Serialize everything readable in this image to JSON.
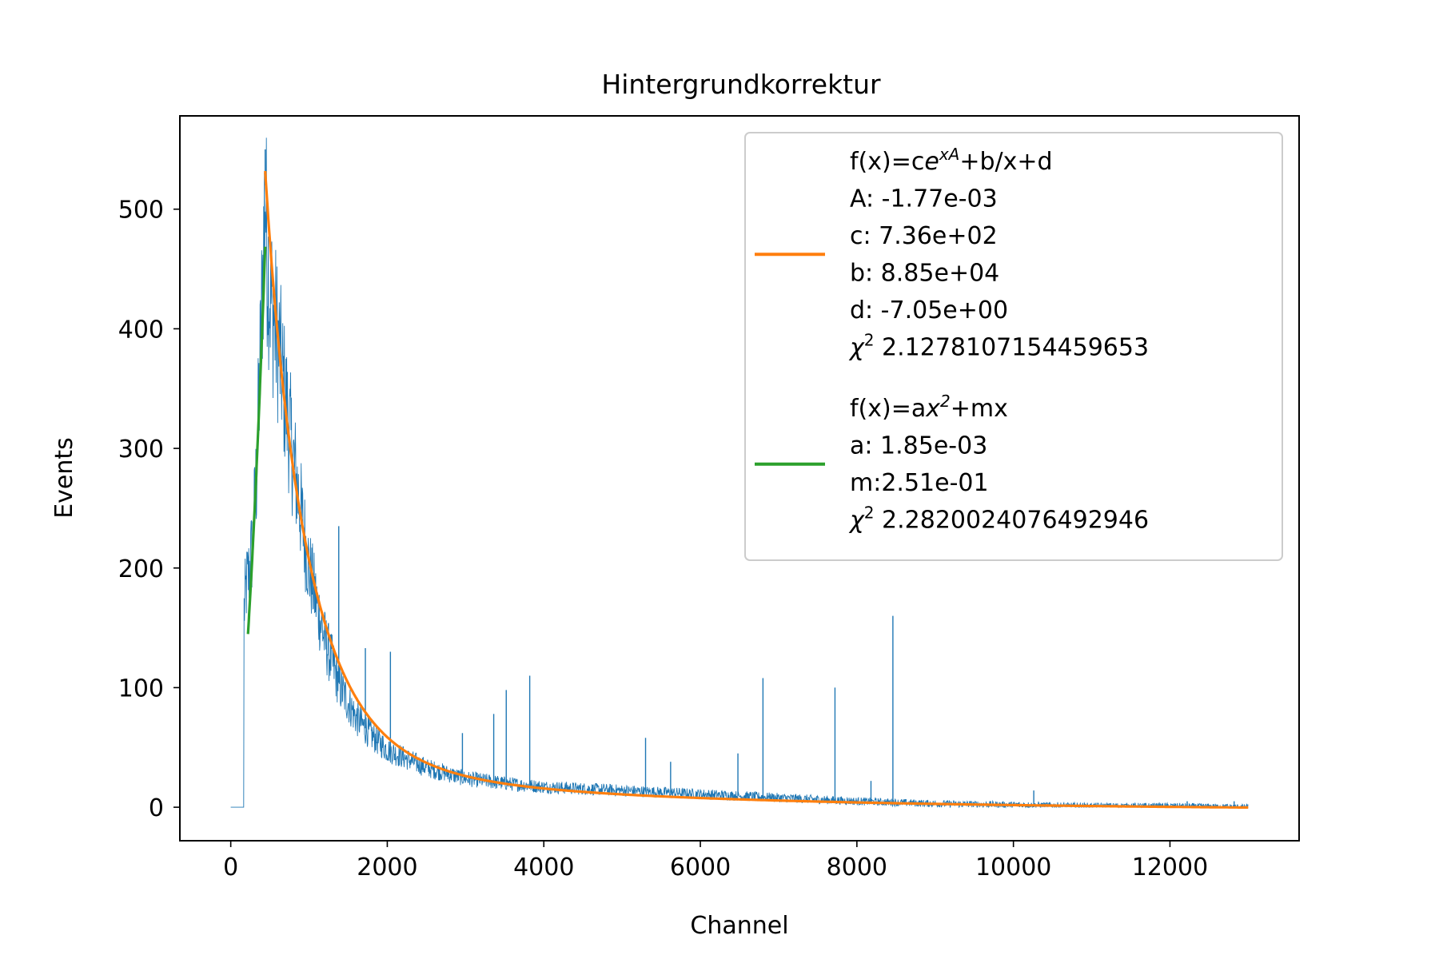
{
  "chart_data": {
    "type": "line",
    "title": "Hintergrundkorrektur",
    "xlabel": "Channel",
    "ylabel": "Events",
    "xlim": [
      -650,
      13650
    ],
    "ylim": [
      -28,
      578
    ],
    "x_ticks": [
      0,
      2000,
      4000,
      6000,
      8000,
      10000,
      12000
    ],
    "y_ticks": [
      0,
      100,
      200,
      300,
      400,
      500
    ],
    "grid": false,
    "legend_position": "top-right",
    "series": [
      {
        "kind": "histogram",
        "color": "#1f77b4",
        "points": [
          [
            0,
            0
          ],
          [
            165,
            0
          ],
          [
            170,
            165
          ],
          [
            200,
            185
          ],
          [
            230,
            195
          ],
          [
            280,
            220
          ],
          [
            330,
            280
          ],
          [
            380,
            380
          ],
          [
            420,
            470
          ],
          [
            440,
            520
          ],
          [
            460,
            470
          ],
          [
            500,
            430
          ],
          [
            600,
            390
          ],
          [
            800,
            290
          ],
          [
            1000,
            200
          ],
          [
            1200,
            140
          ],
          [
            1400,
            100
          ],
          [
            1600,
            75
          ],
          [
            1800,
            60
          ],
          [
            2000,
            48
          ],
          [
            2500,
            33
          ],
          [
            3000,
            24
          ],
          [
            3500,
            20
          ],
          [
            4000,
            17
          ],
          [
            5000,
            14
          ],
          [
            6000,
            11
          ],
          [
            7000,
            8
          ],
          [
            8000,
            5
          ],
          [
            9000,
            3
          ],
          [
            10000,
            2
          ],
          [
            11000,
            1
          ],
          [
            12000,
            1
          ],
          [
            13000,
            0
          ]
        ],
        "spikes": [
          [
            440,
            550
          ],
          [
            1380,
            235
          ],
          [
            1720,
            133
          ],
          [
            2040,
            130
          ],
          [
            2960,
            62
          ],
          [
            3360,
            78
          ],
          [
            3520,
            98
          ],
          [
            3820,
            110
          ],
          [
            5300,
            58
          ],
          [
            5620,
            38
          ],
          [
            6480,
            45
          ],
          [
            6800,
            108
          ],
          [
            7720,
            100
          ],
          [
            8180,
            22
          ],
          [
            8460,
            160
          ],
          [
            10260,
            14
          ],
          [
            12220,
            5
          ],
          [
            12820,
            5
          ]
        ]
      },
      {
        "name": "f(x)=ce^{xA}+b/x+d",
        "kind": "fit",
        "color": "#ff7f0e",
        "params": {
          "A": -0.00177,
          "c": 736,
          "b": 88500,
          "d": -7.05
        },
        "x_range": [
          440,
          13000
        ]
      },
      {
        "name": "f(x)=ax^2+mx",
        "kind": "fit",
        "color": "#2ca02c",
        "params": {
          "a": 0.00185,
          "m": 0.251
        },
        "x_range": [
          220,
          440
        ]
      }
    ],
    "legend": [
      {
        "color": "#ff7f0e",
        "lines": [
          {
            "base": "f(x)=c",
            "it": "e",
            "sup": "xA",
            "tail": "+b/x+d"
          },
          {
            "text": "A: -1.77e-03"
          },
          {
            "text": "c: 7.36e+02"
          },
          {
            "text": "b: 8.85e+04"
          },
          {
            "text": "d: -7.05e+00"
          },
          {
            "chi": "χ",
            "sup": "2",
            "tail": " 2.1278107154459653"
          }
        ]
      },
      {
        "color": "#2ca02c",
        "lines": [
          {
            "base": "f(x)=a",
            "it": "x",
            "sup": "2",
            "tail": "+mx"
          },
          {
            "text": "a: 1.85e-03"
          },
          {
            "text": "m:2.51e-01"
          },
          {
            "chi": "χ",
            "sup": "2",
            "tail": " 2.2820024076492946"
          }
        ]
      }
    ]
  }
}
